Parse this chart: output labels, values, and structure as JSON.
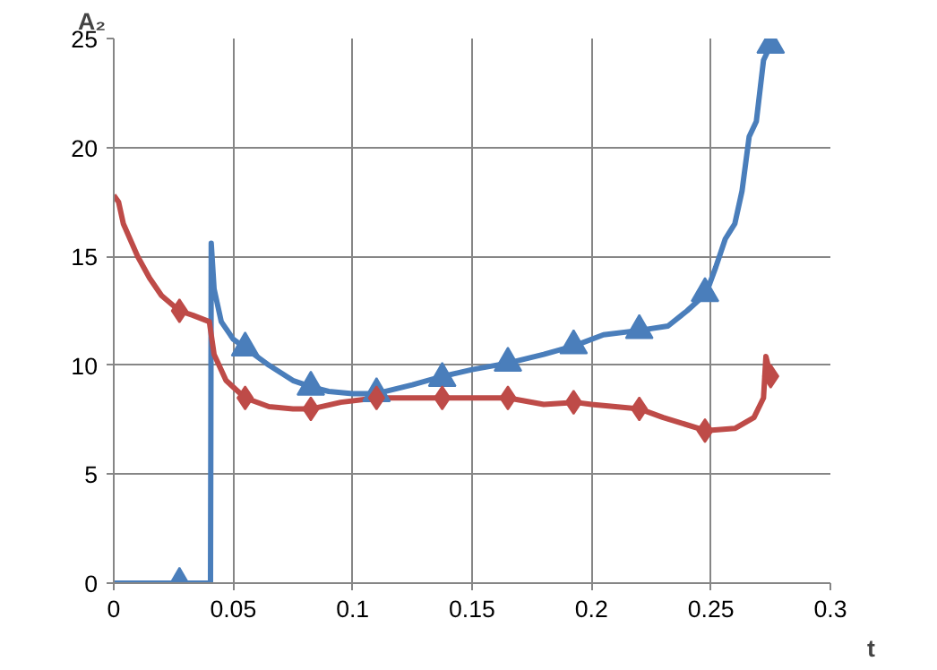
{
  "chart_data": {
    "type": "line",
    "xlabel": "t",
    "ylabel": "A₂",
    "xlim": [
      0,
      0.3
    ],
    "ylim": [
      0,
      25
    ],
    "xticks": [
      0,
      0.05,
      0.1,
      0.15,
      0.2,
      0.25,
      0.3
    ],
    "yticks": [
      0,
      5,
      10,
      15,
      20,
      25
    ],
    "grid": true,
    "series": [
      {
        "marker": "none",
        "color": "#4a7ebb",
        "x": [
          0,
          0.0275,
          0.0405,
          0.0408,
          0.042,
          0.045,
          0.05,
          0.055,
          0.065,
          0.075,
          0.083,
          0.09,
          0.1,
          0.11,
          0.125,
          0.138,
          0.15,
          0.165,
          0.18,
          0.193,
          0.205,
          0.22,
          0.232,
          0.24,
          0.248,
          0.252,
          0.256,
          0.26,
          0.263,
          0.266,
          0.269,
          0.272,
          0.275
        ],
        "values": [
          0,
          0,
          0,
          15.6,
          13.5,
          12,
          11.2,
          10.8,
          10,
          9.3,
          9,
          8.8,
          8.7,
          8.7,
          9.1,
          9.5,
          9.8,
          10.1,
          10.5,
          10.9,
          11.4,
          11.6,
          11.8,
          12.5,
          13.3,
          14.5,
          15.8,
          16.5,
          18,
          20.5,
          21.2,
          24,
          24.7
        ]
      },
      {
        "marker": "none",
        "color": "#be4b48",
        "x": [
          0,
          0.002,
          0.004,
          0.01,
          0.015,
          0.02,
          0.0275,
          0.033,
          0.04,
          0.042,
          0.047,
          0.055,
          0.065,
          0.075,
          0.083,
          0.095,
          0.11,
          0.125,
          0.138,
          0.155,
          0.165,
          0.18,
          0.193,
          0.2,
          0.22,
          0.23,
          0.248,
          0.26,
          0.268,
          0.272,
          0.273,
          0.275
        ],
        "values": [
          17.8,
          17.5,
          16.5,
          15,
          14,
          13.2,
          12.5,
          12.3,
          12,
          10.5,
          9.3,
          8.5,
          8.1,
          8,
          8,
          8.3,
          8.5,
          8.5,
          8.5,
          8.5,
          8.5,
          8.2,
          8.3,
          8.2,
          8,
          7.6,
          7,
          7.1,
          7.6,
          8.5,
          10.4,
          9.5
        ]
      },
      {
        "type": "scatter",
        "marker": "triangle",
        "color": "#4a7ebb",
        "x": [
          0.0275,
          0.055,
          0.0825,
          0.11,
          0.1375,
          0.165,
          0.1925,
          0.22,
          0.2475,
          0.275
        ],
        "values": [
          0,
          10.8,
          9,
          8.7,
          9.4,
          10.1,
          10.9,
          11.6,
          13.3,
          24.7
        ]
      },
      {
        "type": "scatter",
        "marker": "diamond",
        "color": "#be4b48",
        "x": [
          0.0275,
          0.055,
          0.0825,
          0.11,
          0.1375,
          0.165,
          0.1925,
          0.22,
          0.2475,
          0.275
        ],
        "values": [
          12.5,
          8.5,
          8,
          8.5,
          8.5,
          8.5,
          8.3,
          8,
          7,
          9.5
        ]
      }
    ]
  }
}
